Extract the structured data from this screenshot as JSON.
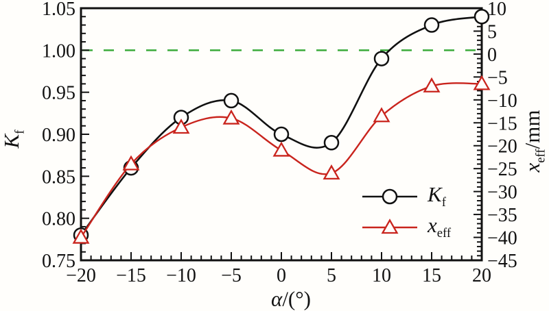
{
  "figure": {
    "background": "#fffefb",
    "frame_color": "#111111"
  },
  "chart_data": {
    "type": "line",
    "title": "",
    "x": [
      -20,
      -15,
      -10,
      -5,
      0,
      5,
      10,
      15,
      20
    ],
    "series": [
      {
        "name": "Kf",
        "label": {
          "symbol": "K",
          "sub": "f"
        },
        "axis": "left",
        "color": "#111111",
        "marker": "circle",
        "values": [
          0.78,
          0.86,
          0.92,
          0.94,
          0.9,
          0.89,
          0.99,
          1.03,
          1.04
        ]
      },
      {
        "name": "xeff",
        "label": {
          "symbol": "x",
          "sub": "eff"
        },
        "axis": "right",
        "color": "#c9241d",
        "marker": "triangle",
        "values": [
          -40,
          -24,
          -16,
          -14,
          -21,
          -26,
          -13.5,
          -7,
          -6.5
        ]
      }
    ],
    "axes": {
      "x": {
        "title": {
          "symbol": "α",
          "rest": "/(°)"
        },
        "min": -20,
        "max": 20,
        "major": 5,
        "minor": 1,
        "tick_labels": [
          "−20",
          "−15",
          "−10",
          "−5",
          "0",
          "5",
          "10",
          "15",
          "20"
        ]
      },
      "left": {
        "title": {
          "symbol": "K",
          "sub": "f"
        },
        "min": 0.75,
        "max": 1.05,
        "major": 0.05,
        "minor": 0.01,
        "tick_labels": [
          "1.05",
          "1.00",
          "0.95",
          "0.90",
          "0.85",
          "0.80",
          "0.75"
        ]
      },
      "right": {
        "title": {
          "symbol": "x",
          "sub": "eff",
          "rest": "/mm"
        },
        "min": -45,
        "max": 10,
        "major": 5,
        "minor": 1,
        "tick_labels": [
          "10",
          "5",
          "0",
          "−5",
          "−10",
          "−15",
          "−20",
          "−25",
          "−30",
          "−35",
          "−40",
          "−45"
        ]
      }
    },
    "reference_line": {
      "axis": "left",
      "value": 1.0,
      "color": "#3aab3a",
      "style": "dashed"
    },
    "legend": {
      "position": "inside-lower-right",
      "box": false
    },
    "grid": false
  }
}
